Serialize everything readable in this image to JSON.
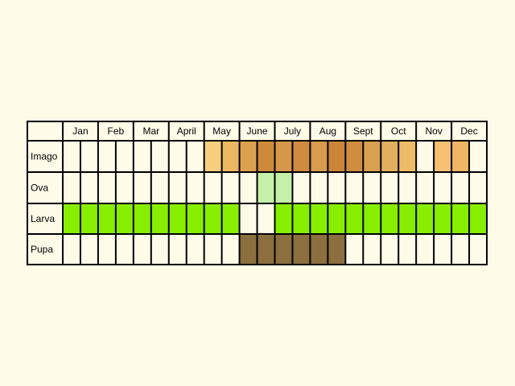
{
  "months": [
    "Jan",
    "Feb",
    "Mar",
    "April",
    "May",
    "June",
    "July",
    "Aug",
    "Sept",
    "Oct",
    "Nov",
    "Dec"
  ],
  "colors": {
    "background": "#fefbe9",
    "grid": "#000000",
    "imago_shades": [
      "#f5cf7e",
      "#ecb762",
      "#dca14f",
      "#cd8a3b",
      "#c48034",
      "#e9b35e",
      "#f6c173"
    ],
    "ova": "#c4f0a8",
    "larva": "#88ee00",
    "pupa": "#8b6f3e"
  },
  "rows": [
    {
      "label": "Imago",
      "segments": [
        {
          "cell": 8,
          "fill": "#f5cf7e"
        },
        {
          "cell": 9,
          "fill": "#ecb762"
        },
        {
          "cell": 10,
          "fill": "#dca14f"
        },
        {
          "cell": 11,
          "fill": "#cd8a3b"
        },
        {
          "cell": 12,
          "fill": "#d6974a"
        },
        {
          "cell": 13,
          "fill": "#cf8c40"
        },
        {
          "cell": 14,
          "fill": "#d89a4b"
        },
        {
          "cell": 15,
          "fill": "#c98637"
        },
        {
          "cell": 16,
          "fill": "#cf8d40"
        },
        {
          "cell": 17,
          "fill": "#d9a050"
        },
        {
          "cell": 18,
          "fill": "#e3ae5d"
        },
        {
          "cell": 19,
          "fill": "#eebc68"
        },
        {
          "cell": 21,
          "fill": "#f6c173"
        },
        {
          "cell": 22,
          "fill": "#f0b565"
        }
      ]
    },
    {
      "label": "Ova",
      "segments": [
        {
          "cell": 11,
          "fill": "#c4f0a8"
        },
        {
          "cell": 12,
          "fill": "#c4f0a8"
        }
      ]
    },
    {
      "label": "Larva",
      "segments": [
        {
          "cell": 0,
          "fill": "#88ee00"
        },
        {
          "cell": 1,
          "fill": "#88ee00"
        },
        {
          "cell": 2,
          "fill": "#88ee00"
        },
        {
          "cell": 3,
          "fill": "#88ee00"
        },
        {
          "cell": 4,
          "fill": "#88ee00"
        },
        {
          "cell": 5,
          "fill": "#88ee00"
        },
        {
          "cell": 6,
          "fill": "#88ee00"
        },
        {
          "cell": 7,
          "fill": "#88ee00"
        },
        {
          "cell": 8,
          "fill": "#88ee00"
        },
        {
          "cell": 9,
          "fill": "#88ee00"
        },
        {
          "cell": 12,
          "fill": "#88ee00"
        },
        {
          "cell": 13,
          "fill": "#88ee00"
        },
        {
          "cell": 14,
          "fill": "#88ee00"
        },
        {
          "cell": 15,
          "fill": "#88ee00"
        },
        {
          "cell": 16,
          "fill": "#88ee00"
        },
        {
          "cell": 17,
          "fill": "#88ee00"
        },
        {
          "cell": 18,
          "fill": "#88ee00"
        },
        {
          "cell": 19,
          "fill": "#88ee00"
        },
        {
          "cell": 20,
          "fill": "#88ee00"
        },
        {
          "cell": 21,
          "fill": "#88ee00"
        },
        {
          "cell": 22,
          "fill": "#88ee00"
        },
        {
          "cell": 23,
          "fill": "#88ee00"
        }
      ]
    },
    {
      "label": "Pupa",
      "segments": [
        {
          "cell": 10,
          "fill": "#8b6f3e"
        },
        {
          "cell": 11,
          "fill": "#8b6f3e"
        },
        {
          "cell": 12,
          "fill": "#8b6f3e"
        },
        {
          "cell": 13,
          "fill": "#8b6f3e"
        },
        {
          "cell": 14,
          "fill": "#8b6f3e"
        },
        {
          "cell": 15,
          "fill": "#8b6f3e"
        }
      ]
    }
  ]
}
